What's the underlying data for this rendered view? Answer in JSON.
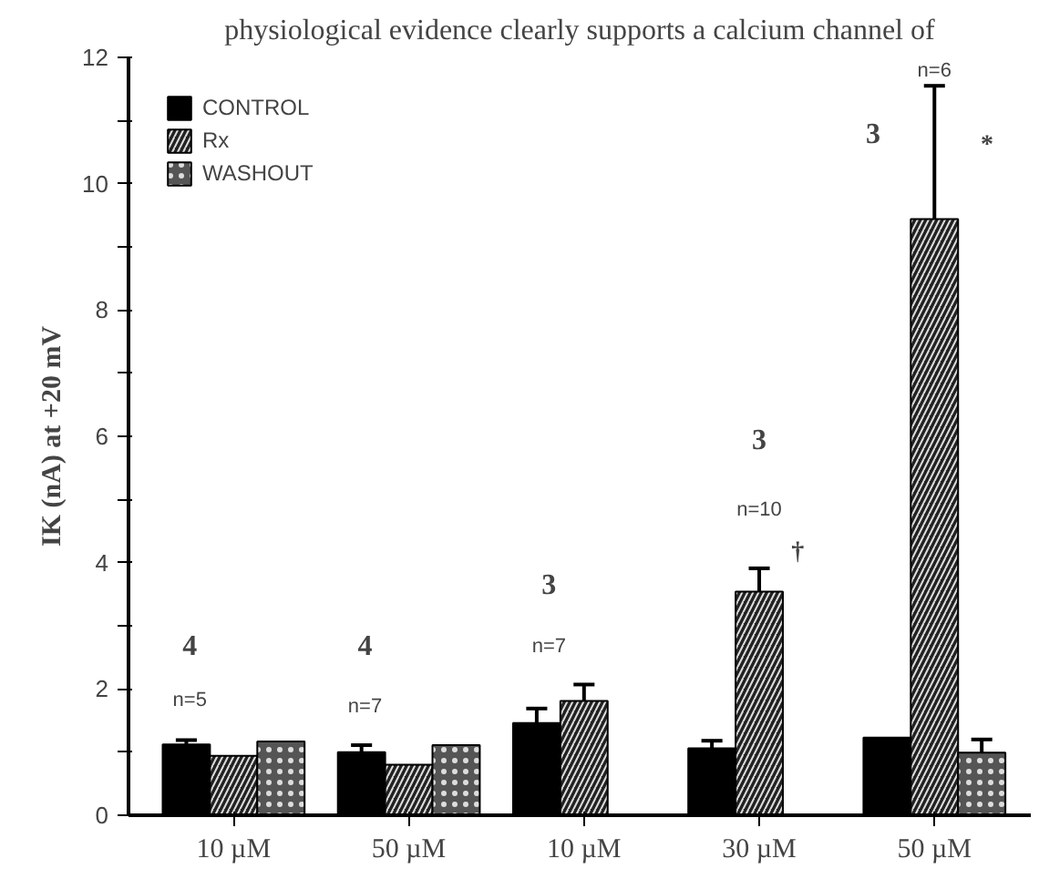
{
  "chart_data": {
    "type": "bar",
    "ylabel": "IK (nA) at +20 mV",
    "categories": [
      "10 µM",
      "50 µM",
      "10 µM",
      "30 µM",
      "50 µM"
    ],
    "series": [
      {
        "name": "CONTROL",
        "color": "#000000",
        "values": [
          1.12,
          1.0,
          1.46,
          1.06,
          1.23
        ],
        "errors": [
          [
            1.12,
            1.19
          ],
          [
            1.0,
            1.11
          ],
          [
            1.46,
            1.69
          ],
          [
            1.06,
            1.18
          ],
          null
        ]
      },
      {
        "name": "Rx",
        "color": "#222222",
        "values": [
          0.94,
          0.8,
          1.81,
          3.54,
          9.44
        ],
        "errors": [
          null,
          null,
          [
            1.81,
            2.07
          ],
          [
            3.54,
            3.91
          ],
          [
            9.44,
            11.55
          ]
        ]
      },
      {
        "name": "WASHOUT",
        "color": "#555555",
        "values": [
          1.17,
          1.11,
          null,
          null,
          0.99
        ],
        "errors": [
          null,
          null,
          null,
          null,
          [
            0.99,
            1.2
          ]
        ]
      }
    ],
    "ylim": [
      0,
      12
    ],
    "yticks": [
      0,
      {
        "value": 1,
        "label": null
      },
      2,
      {
        "value": 3,
        "label": null
      },
      4,
      {
        "value": 5,
        "label": null
      },
      6,
      {
        "value": 7,
        "label": null
      },
      8,
      {
        "value": 9,
        "label": null
      },
      10,
      {
        "value": 11,
        "label": null
      },
      12
    ],
    "legend": "top left",
    "grid": false,
    "annotations": [
      "physiological evidence clearly supports a calcium channel of",
      "4",
      "n=5",
      "4",
      "n=7",
      "3",
      "n=7",
      "3",
      "n=10",
      "†",
      "3",
      "n=6",
      "*"
    ]
  }
}
